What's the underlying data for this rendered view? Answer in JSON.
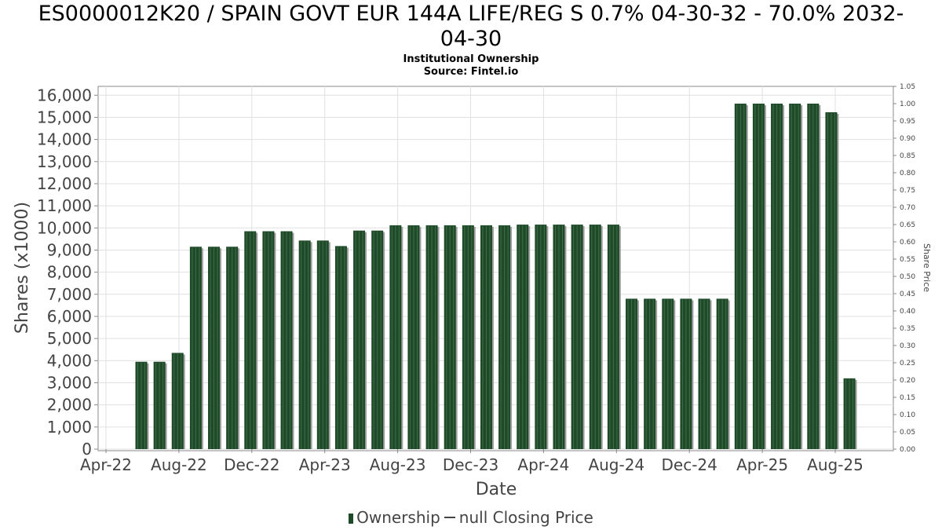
{
  "title": "ES0000012K20 / SPAIN GOVT EUR 144A LIFE/REG S 0.7% 04-30-32 - 70.0% 2032-04-30",
  "title_line1": "ES0000012K20 / SPAIN GOVT EUR 144A LIFE/REG S 0.7% 04-30-32 - 70.0% 2032-",
  "title_line2": "04-30",
  "subtitle1": "Institutional Ownership",
  "subtitle2": "Source: Fintel.io",
  "legend": {
    "ownership": "Ownership",
    "closing_price": "null Closing Price"
  },
  "colors": {
    "bar": "#1f4a2a",
    "bar_shadow": "#a0a0a0",
    "grid": "#e0e0e0",
    "plot_border": "#888888"
  },
  "chart_data": {
    "type": "bar",
    "xlabel": "Date",
    "ylabel": "Shares (x1000)",
    "y2label": "Share Price",
    "ylim": [
      0,
      16400
    ],
    "y2lim": [
      0,
      1.05
    ],
    "yticks": [
      0,
      1000,
      2000,
      3000,
      4000,
      5000,
      6000,
      7000,
      8000,
      9000,
      10000,
      11000,
      12000,
      13000,
      14000,
      15000,
      16000
    ],
    "ytick_labels": [
      "0",
      "1,000",
      "2,000",
      "3,000",
      "4,000",
      "5,000",
      "6,000",
      "7,000",
      "8,000",
      "9,000",
      "10,000",
      "11,000",
      "12,000",
      "13,000",
      "14,000",
      "15,000",
      "16,000"
    ],
    "y2ticks": [
      "0.00",
      "0.05",
      "0.10",
      "0.15",
      "0.20",
      "0.25",
      "0.30",
      "0.35",
      "0.40",
      "0.45",
      "0.50",
      "0.55",
      "0.60",
      "0.65",
      "0.70",
      "0.75",
      "0.80",
      "0.85",
      "0.90",
      "0.95",
      "1.00",
      "1.05"
    ],
    "xticks": [
      "Apr-22",
      "Aug-22",
      "Dec-22",
      "Apr-23",
      "Aug-23",
      "Dec-23",
      "Apr-24",
      "Aug-24",
      "Dec-24",
      "Apr-25",
      "Aug-25"
    ],
    "grid": true,
    "legend_position": "bottom",
    "series": [
      {
        "name": "Ownership",
        "values": [
          3950,
          3950,
          4350,
          9150,
          9150,
          9150,
          9850,
          9850,
          9850,
          9430,
          9430,
          9180,
          9880,
          9880,
          10120,
          10120,
          10120,
          10120,
          10120,
          10120,
          10120,
          10150,
          10150,
          10150,
          10150,
          10150,
          10150,
          6800,
          6800,
          6800,
          6800,
          6800,
          6800,
          15620,
          15620,
          15620,
          15620,
          15620,
          15230,
          3200
        ]
      }
    ]
  }
}
